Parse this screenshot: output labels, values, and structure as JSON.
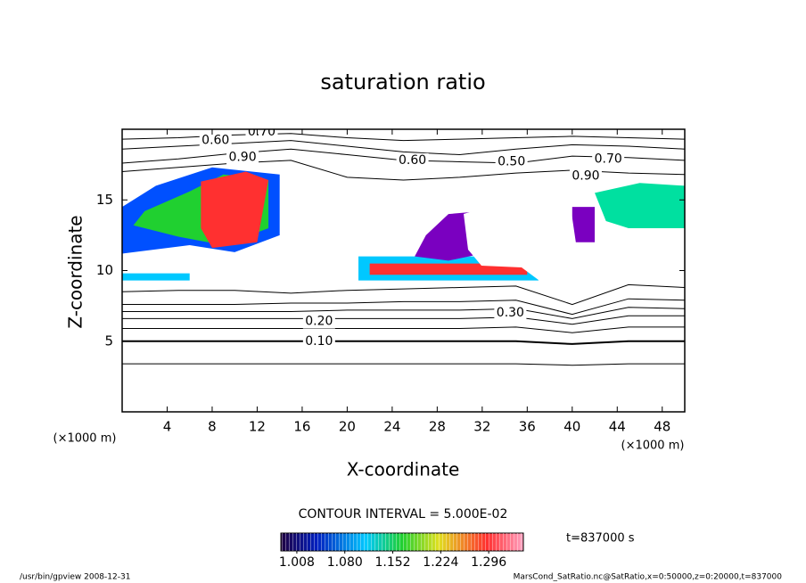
{
  "chart_data": {
    "type": "contour",
    "title": "saturation ratio",
    "x_label": "X-coordinate",
    "y_label": "Z-coordinate",
    "x_unit": "(×1000 m)",
    "y_unit": "(×1000 m)",
    "xlim": [
      0,
      50
    ],
    "ylim": [
      0,
      20
    ],
    "xticks": [
      4,
      8,
      12,
      16,
      20,
      24,
      28,
      32,
      36,
      40,
      44,
      48
    ],
    "yticks": [
      5,
      10,
      15
    ],
    "x": [
      0,
      5,
      10,
      15,
      20,
      25,
      30,
      35,
      40,
      45,
      50
    ],
    "contours": [
      {
        "level": 0.05,
        "y": [
          3.4,
          3.4,
          3.4,
          3.4,
          3.4,
          3.4,
          3.4,
          3.4,
          3.3,
          3.4,
          3.4
        ]
      },
      {
        "level": 0.1,
        "y": [
          5,
          5,
          5,
          5,
          5,
          5,
          5,
          5,
          4.8,
          5,
          5
        ]
      },
      {
        "level": 0.15,
        "y": [
          5.9,
          5.9,
          5.9,
          5.9,
          5.9,
          5.9,
          5.9,
          6,
          5.6,
          6,
          6
        ]
      },
      {
        "level": 0.2,
        "y": [
          6.6,
          6.6,
          6.6,
          6.6,
          6.6,
          6.6,
          6.6,
          6.7,
          6.2,
          6.8,
          6.8
        ]
      },
      {
        "level": 0.25,
        "y": [
          7.1,
          7.1,
          7.1,
          7.1,
          7.2,
          7.2,
          7.2,
          7.3,
          6.6,
          7.4,
          7.3
        ]
      },
      {
        "level": 0.3,
        "y": [
          7.6,
          7.6,
          7.6,
          7.7,
          7.7,
          7.8,
          7.8,
          7.9,
          6.9,
          8,
          7.9
        ]
      },
      {
        "level": 0.4,
        "y": [
          8.5,
          8.6,
          8.6,
          8.4,
          8.6,
          8.7,
          8.8,
          8.9,
          7.6,
          9,
          8.8
        ]
      },
      {
        "level": 0.5,
        "y": [
          17.6,
          17.9,
          18.3,
          18.6,
          18.2,
          17.8,
          17.7,
          17.6,
          18.1,
          18,
          17.8
        ]
      },
      {
        "level": 0.6,
        "y": [
          18.6,
          18.8,
          19,
          19.2,
          18.8,
          18.4,
          18.2,
          18.6,
          18.9,
          18.8,
          18.6
        ]
      },
      {
        "level": 0.7,
        "y": [
          19.3,
          19.4,
          19.6,
          19.7,
          19.4,
          19.2,
          19.3,
          19.4,
          19.5,
          19.4,
          19.3
        ]
      },
      {
        "level": 0.9,
        "y": [
          17,
          17.3,
          17.6,
          17.8,
          16.6,
          16.4,
          16.6,
          16.9,
          17.1,
          16.9,
          16.8
        ]
      }
    ],
    "contour_labels": [
      {
        "label": "0.10",
        "x": 17.5,
        "y": 5
      },
      {
        "label": "0.20",
        "x": 17.5,
        "y": 6.4
      },
      {
        "label": "0.30",
        "x": 34.5,
        "y": 7
      },
      {
        "label": "0.60",
        "x": 25.8,
        "y": 17.8
      },
      {
        "label": "0.50",
        "x": 34.6,
        "y": 17.7
      },
      {
        "label": "0.90",
        "x": 10.7,
        "y": 18
      },
      {
        "label": "0.60",
        "x": 8.3,
        "y": 19.2
      },
      {
        "label": "0.70",
        "x": 12.4,
        "y": 19.8
      },
      {
        "label": "0.70",
        "x": 43.2,
        "y": 17.9
      },
      {
        "label": "0.90",
        "x": 41.2,
        "y": 16.7
      }
    ],
    "regions": [
      {
        "value": 1.06,
        "color": "#0050ff",
        "x": [
          0,
          3,
          8,
          14,
          14,
          10,
          6,
          0
        ],
        "y": [
          14.5,
          16,
          17.3,
          16.8,
          12.5,
          11.3,
          11.8,
          11.2
        ]
      },
      {
        "value": 1.16,
        "color": "#20d030",
        "x": [
          2,
          6,
          9,
          13,
          13,
          9,
          5,
          1
        ],
        "y": [
          14.2,
          15.6,
          16.8,
          16.4,
          13,
          11.8,
          12.4,
          13.2
        ]
      },
      {
        "value": 1.3,
        "color": "#ff3030",
        "x": [
          7,
          11,
          13,
          12,
          8,
          7
        ],
        "y": [
          16.3,
          17,
          16.4,
          12,
          11.6,
          13
        ]
      },
      {
        "value": 1.1,
        "color": "#00c8ff",
        "x": [
          21,
          37,
          37,
          21
        ],
        "y": [
          9.3,
          9.3,
          11,
          11
        ]
      },
      {
        "value": 1.3,
        "color": "#ff3030",
        "x": [
          22,
          36,
          36,
          22
        ],
        "y": [
          9.7,
          9.7,
          10.5,
          10.5
        ]
      },
      {
        "value": 1.0,
        "color": "#7a00c0",
        "x": [
          27,
          29,
          32,
          32,
          29,
          26
        ],
        "y": [
          12.5,
          14,
          14.2,
          11.2,
          10.7,
          11
        ]
      },
      {
        "value": 1.0,
        "color": "#7a00c0",
        "x": [
          40,
          42,
          42,
          40
        ],
        "y": [
          12,
          12,
          14.5,
          14.5
        ]
      },
      {
        "value": 1.12,
        "color": "#00e0a0",
        "x": [
          42,
          46,
          50,
          50,
          45,
          43
        ],
        "y": [
          15.5,
          16.2,
          16,
          13,
          13,
          13.5
        ]
      },
      {
        "value": 1.1,
        "color": "#00c8ff",
        "x": [
          0,
          6,
          6,
          0
        ],
        "y": [
          9.3,
          9.3,
          9.8,
          9.8
        ]
      }
    ],
    "contour_interval": "CONTOUR INTERVAL = 5.000E-02",
    "colorbar": {
      "lim": [
        0.984,
        1.348
      ],
      "ticks": [
        1.008,
        {
          "value": 1.08,
          "label": "1.080"
        },
        1.152,
        1.224,
        1.296
      ]
    },
    "time_label": "t=837000 s",
    "footer_left": "/usr/bin/gpview   2008-12-31",
    "footer_right": "MarsCond_SatRatio.nc@SatRatio,x=0:50000,z=0:20000,t=837000"
  }
}
